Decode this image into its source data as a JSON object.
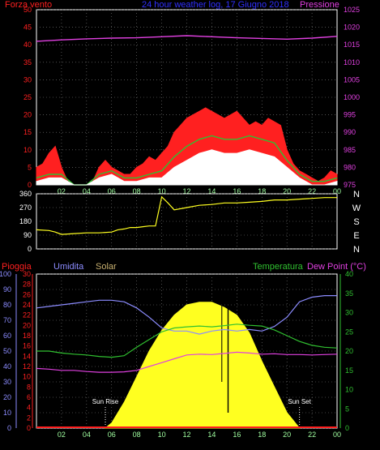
{
  "colors": {
    "red": "#ff2020",
    "blue": "#3030ff",
    "magenta": "#e040e0",
    "green": "#30c030",
    "white": "#ffffff",
    "yellow": "#ffff20",
    "periwinkle": "#8c8cff",
    "axis_green": "#a0ffa0",
    "solar_label": "#c8b070",
    "panel_bg": "#000000"
  },
  "chart_data": [
    {
      "type": "line",
      "title": "24 hour weather log, 17 Giugno 2018",
      "left_label": "Forza vento",
      "right_label": "Pressione",
      "y_left": {
        "ticks": [
          "0",
          "5",
          "10",
          "15",
          "20",
          "25",
          "30",
          "35",
          "40",
          "45",
          "50"
        ],
        "range": [
          0,
          50
        ]
      },
      "y_right": {
        "ticks": [
          "975",
          "980",
          "985",
          "990",
          "995",
          "1000",
          "1005",
          "1010",
          "1015",
          "1020",
          "1025"
        ],
        "range": [
          975,
          1025
        ]
      },
      "x_ticks": [
        "02",
        "04",
        "06",
        "08",
        "10",
        "12",
        "14",
        "16",
        "18",
        "20",
        "22",
        "00"
      ],
      "series": [
        {
          "id": "pressure",
          "axis": "right",
          "color": "#e040e0",
          "x": [
            0,
            2,
            4,
            6,
            8,
            10,
            12,
            14,
            16,
            18,
            20,
            22,
            24
          ],
          "y": [
            1016.0,
            1016.4,
            1016.7,
            1016.9,
            1017.0,
            1017.3,
            1017.6,
            1017.3,
            1017.0,
            1016.8,
            1016.6,
            1016.9,
            1017.4
          ]
        },
        {
          "id": "gust",
          "axis": "left",
          "color": "#ff2020",
          "x": [
            0,
            0.5,
            1,
            1.5,
            2,
            2.5,
            3,
            3.5,
            4,
            4.5,
            5,
            5.5,
            6,
            6.5,
            7,
            7.5,
            8,
            8.5,
            9,
            9.5,
            10,
            10.5,
            11,
            11.5,
            12,
            12.5,
            13,
            13.5,
            14,
            14.5,
            15,
            15.5,
            16,
            16.5,
            17,
            17.5,
            18,
            18.5,
            19,
            19.5,
            20,
            20.5,
            21,
            21.5,
            22,
            22.5,
            23,
            23.5,
            24
          ],
          "y": [
            5,
            6,
            9,
            11,
            5,
            1,
            0,
            0,
            0,
            1,
            5,
            7,
            5,
            4,
            3,
            3,
            5,
            6,
            8,
            7,
            9,
            11,
            15,
            17,
            19,
            20,
            21,
            22,
            21,
            20,
            19,
            20,
            21,
            19,
            17,
            18,
            17,
            19,
            18,
            17,
            10,
            6,
            4,
            3,
            2,
            1,
            2,
            4,
            3
          ]
        },
        {
          "id": "average",
          "axis": "left",
          "color": "#30c030",
          "x": [
            0,
            1,
            2,
            3,
            4,
            5,
            6,
            7,
            8,
            9,
            10,
            11,
            12,
            13,
            14,
            15,
            16,
            17,
            18,
            19,
            20,
            21,
            22,
            23,
            24
          ],
          "y": [
            2,
            3,
            3,
            0,
            0,
            3,
            4,
            2,
            2,
            3,
            4,
            8,
            11,
            13,
            14,
            13,
            13,
            14,
            13,
            12,
            7,
            3,
            1,
            1,
            2
          ]
        },
        {
          "id": "min",
          "axis": "left",
          "color": "#ffffff",
          "x": [
            0,
            1,
            2,
            3,
            4,
            5,
            6,
            7,
            8,
            9,
            10,
            11,
            12,
            13,
            14,
            15,
            16,
            17,
            18,
            19,
            20,
            21,
            22,
            23,
            24
          ],
          "y": [
            1,
            2,
            2,
            0,
            0,
            2,
            3,
            1,
            1,
            2,
            2,
            5,
            7,
            9,
            10,
            9,
            9,
            10,
            9,
            8,
            5,
            2,
            0,
            0,
            1
          ]
        }
      ]
    },
    {
      "type": "line",
      "y_ticks": [
        "0",
        "90",
        "180",
        "270",
        "360"
      ],
      "y_range": [
        0,
        360
      ],
      "right_labels": [
        "N",
        "W",
        "S",
        "E",
        "N"
      ],
      "series": [
        {
          "id": "wind_direction",
          "color": "#ffff20",
          "x": [
            0,
            1,
            1.5,
            2,
            3,
            4,
            5,
            6,
            6.5,
            7,
            7.5,
            8,
            8.5,
            9,
            9.5,
            10,
            10.5,
            11,
            12,
            13,
            14,
            15,
            16,
            17,
            18,
            19,
            20,
            21,
            22,
            23,
            24
          ],
          "y": [
            125,
            120,
            110,
            95,
            100,
            105,
            105,
            110,
            125,
            130,
            140,
            140,
            145,
            150,
            150,
            340,
            300,
            255,
            270,
            285,
            290,
            300,
            300,
            305,
            310,
            320,
            320,
            325,
            330,
            335,
            335
          ]
        }
      ]
    },
    {
      "type": "area",
      "left_labels": [
        "Pioggia",
        "Umidita",
        "Solar"
      ],
      "right_labels": [
        "Temperatura",
        "Dew Point (°C)"
      ],
      "y_outer": {
        "ticks": [
          "0",
          "10",
          "20",
          "30",
          "40",
          "50",
          "60",
          "70",
          "80",
          "90",
          "100"
        ],
        "range": [
          0,
          100
        ]
      },
      "y_inner": {
        "ticks": [
          "0",
          "2",
          "4",
          "6",
          "8",
          "10",
          "12",
          "14",
          "16",
          "18",
          "20",
          "22",
          "24",
          "26",
          "28",
          "30"
        ],
        "range": [
          0,
          30
        ]
      },
      "y_right": {
        "ticks": [
          "0",
          "5",
          "10",
          "15",
          "20",
          "25",
          "30",
          "35",
          "40"
        ],
        "range": [
          0,
          40
        ]
      },
      "annotations": [
        {
          "text": "Sun Rise",
          "x": 5.5
        },
        {
          "text": "Sun Set",
          "x": 21
        }
      ],
      "series": [
        {
          "id": "humidity",
          "axis": "outer",
          "color": "#8c8cff",
          "x": [
            0,
            1,
            2,
            3,
            4,
            5,
            6,
            7,
            8,
            9,
            10,
            11,
            12,
            13,
            14,
            15,
            16,
            17,
            18,
            19,
            20,
            21,
            22,
            23,
            24
          ],
          "y": [
            78,
            79,
            80,
            81,
            82,
            83,
            83,
            82,
            78,
            72,
            65,
            63,
            63,
            61,
            63,
            64,
            63,
            64,
            63,
            66,
            72,
            82,
            85,
            86,
            86
          ]
        },
        {
          "id": "temperature",
          "axis": "right",
          "color": "#30c030",
          "x": [
            0,
            1,
            2,
            3,
            4,
            5,
            6,
            7,
            8,
            9,
            10,
            11,
            12,
            13,
            14,
            15,
            16,
            17,
            18,
            19,
            20,
            21,
            22,
            23,
            24
          ],
          "y": [
            20,
            20,
            19.5,
            19.2,
            19,
            18.6,
            18.4,
            18.8,
            21,
            23,
            25,
            26,
            26.3,
            26.5,
            26.3,
            26.6,
            27,
            26.7,
            26.5,
            25.5,
            24,
            22.5,
            21.5,
            21,
            20.8
          ]
        },
        {
          "id": "dew_point",
          "axis": "right",
          "color": "#e040e0",
          "x": [
            0,
            1,
            2,
            3,
            4,
            5,
            6,
            7,
            8,
            9,
            10,
            11,
            12,
            13,
            14,
            15,
            16,
            17,
            18,
            19,
            20,
            21,
            22,
            23,
            24
          ],
          "y": [
            15.5,
            15.3,
            15,
            15,
            14.7,
            14.5,
            14.5,
            14.6,
            15,
            16,
            17,
            18,
            19,
            19.2,
            19.1,
            19.4,
            19.7,
            19.5,
            19.2,
            19.3,
            19.1,
            19.1,
            19.0,
            19.1,
            19.2
          ]
        },
        {
          "id": "solar",
          "axis": "inner",
          "color": "#ffff20",
          "x": [
            5.5,
            6,
            7,
            8,
            9,
            10,
            11,
            12,
            13,
            14,
            14.5,
            15,
            16,
            17,
            18,
            19,
            20,
            21
          ],
          "y": [
            0,
            1,
            5,
            10,
            15,
            19,
            22,
            24,
            24.5,
            24.5,
            24,
            23.5,
            22,
            18.5,
            13,
            8,
            3,
            0
          ]
        },
        {
          "id": "rain",
          "axis": "inner",
          "color": "#ff2020",
          "x": [
            0,
            24
          ],
          "y": [
            0,
            0
          ]
        }
      ]
    }
  ]
}
